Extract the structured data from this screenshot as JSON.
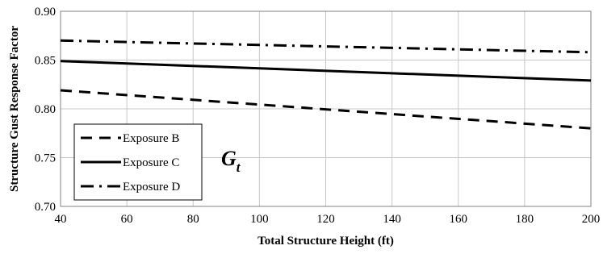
{
  "chart_data": {
    "type": "line",
    "xlabel": "Total Structure Height (ft)",
    "ylabel": "Structure Gust Response Factor",
    "xlim": [
      40,
      200
    ],
    "ylim": [
      0.7,
      0.9
    ],
    "x_ticks": [
      40,
      60,
      80,
      100,
      120,
      140,
      160,
      180,
      200
    ],
    "x_tick_labels": [
      "40",
      "60",
      "80",
      "100",
      "120",
      "140",
      "160",
      "180",
      "200"
    ],
    "y_ticks": [
      0.7,
      0.75,
      0.8,
      0.85,
      0.9
    ],
    "y_tick_labels": [
      "0.70",
      "0.75",
      "0.80",
      "0.85",
      "0.90"
    ],
    "grid": true,
    "legend_position": "bottom-left",
    "annotation": {
      "main": "G",
      "sub": "t"
    },
    "series": [
      {
        "name": "Exposure B",
        "style": "dashed",
        "color": "#000000",
        "x": [
          40,
          200
        ],
        "y": [
          0.819,
          0.78
        ]
      },
      {
        "name": "Exposure C",
        "style": "solid",
        "color": "#000000",
        "x": [
          40,
          200
        ],
        "y": [
          0.849,
          0.829
        ]
      },
      {
        "name": "Exposure D",
        "style": "dashdot",
        "color": "#000000",
        "x": [
          40,
          200
        ],
        "y": [
          0.87,
          0.858
        ]
      }
    ]
  }
}
